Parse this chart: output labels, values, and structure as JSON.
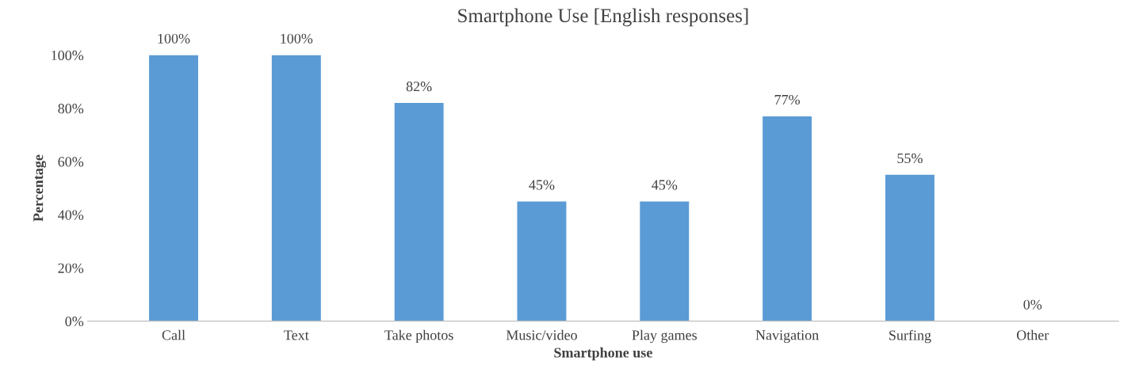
{
  "chart_data": {
    "type": "bar",
    "title": "Smartphone Use [English responses]",
    "xlabel": "Smartphone use",
    "ylabel": "Percentage",
    "categories": [
      "Call",
      "Text",
      "Take photos",
      "Music/video",
      "Play games",
      "Navigation",
      "Surfing",
      "Other"
    ],
    "values": [
      100,
      100,
      82,
      45,
      45,
      77,
      55,
      0
    ],
    "value_labels": [
      "100%",
      "100%",
      "82%",
      "45%",
      "45%",
      "77%",
      "55%",
      "0%"
    ],
    "color": "#5b9bd5",
    "ylim": [
      0,
      100
    ],
    "yticks": [
      {
        "value": 0,
        "label": "0%"
      },
      {
        "value": 20,
        "label": "20%"
      },
      {
        "value": 40,
        "label": "40%"
      },
      {
        "value": 60,
        "label": "60%"
      },
      {
        "value": 80,
        "label": "80%"
      },
      {
        "value": 100,
        "label": "100%"
      }
    ],
    "grid": false,
    "legend": false
  }
}
